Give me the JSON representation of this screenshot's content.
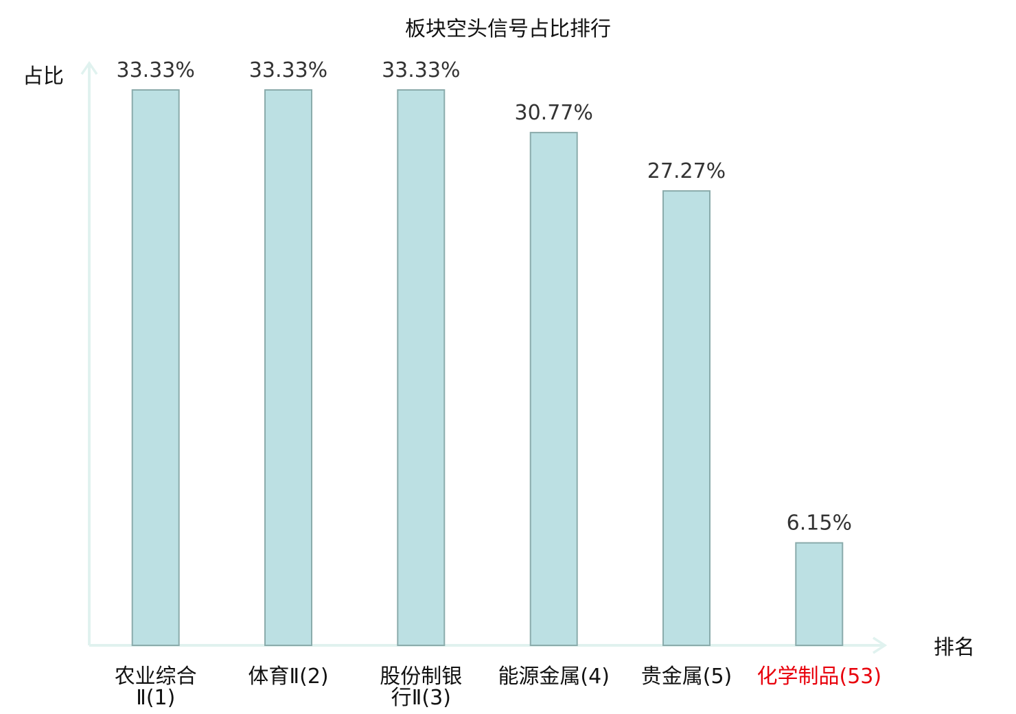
{
  "chart_data": {
    "type": "bar",
    "title": "板块空头信号占比排行",
    "ylabel": "占比",
    "xlabel": "排名",
    "unit": "%",
    "ylim": [
      0,
      33.33
    ],
    "grid": false,
    "legend": "none",
    "categories": [
      [
        "农业综合",
        "Ⅱ(1)"
      ],
      [
        "体育Ⅱ(2)"
      ],
      [
        "股份制银",
        "行Ⅱ(3)"
      ],
      [
        "能源金属(4)"
      ],
      [
        "贵金属(5)"
      ],
      [
        "化学制品(53)"
      ]
    ],
    "values": [
      33.33,
      33.33,
      33.33,
      30.77,
      27.27,
      6.15
    ],
    "value_labels": [
      "33.33%",
      "33.33%",
      "33.33%",
      "30.77%",
      "27.27%",
      "6.15%"
    ],
    "highlight_index": 5,
    "colors": {
      "bar_fill": "#bce0e3",
      "bar_stroke": "#8aabab",
      "axis": "#e0f2ef",
      "label": "#111111",
      "value_label": "#333333",
      "highlight": "#e8000b"
    }
  }
}
